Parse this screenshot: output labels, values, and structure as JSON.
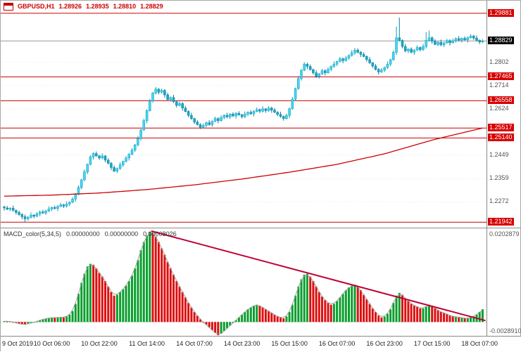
{
  "header": {
    "symbol_period": "GBPUSD,H1",
    "open": "1.28926",
    "high": "1.28935",
    "low": "1.28810",
    "close": "1.28829"
  },
  "macd_header": {
    "name": "MACD_color(5,34,5)",
    "value1": "0.00000000",
    "value2": "0.00000000",
    "value3": "0.00008026"
  },
  "colors": {
    "line_red": "#cc0000",
    "trend_red": "#c00034",
    "candle_up": "#45d6ef",
    "candle_up_border": "#0d9cbe",
    "candle_down": "#17a9c9",
    "candle_down_border": "#0b7f9c",
    "hist_green": "#0a9e2d",
    "hist_red": "#dd0f0f",
    "label_bg_red": "#d60000",
    "label_bg_black": "#000000",
    "bid_line_gray": "#9a9a9a",
    "header_text": "#cc0000"
  },
  "chart_data": [
    {
      "type": "candlestick",
      "title": "GBPUSD,H1",
      "ylim": [
        1.2176,
        1.3036
      ],
      "first_open": 1.2252,
      "closes": [
        1.2248,
        1.2243,
        1.2247,
        1.2239,
        1.2231,
        1.2223,
        1.2215,
        1.2207,
        1.2213,
        1.2221,
        1.2217,
        1.2226,
        1.2233,
        1.2229,
        1.2237,
        1.2244,
        1.225,
        1.2246,
        1.2254,
        1.226,
        1.2255,
        1.2263,
        1.227,
        1.2282,
        1.23,
        1.2326,
        1.2355,
        1.2385,
        1.2414,
        1.2442,
        1.2455,
        1.2446,
        1.2438,
        1.2446,
        1.243,
        1.2418,
        1.2402,
        1.2388,
        1.2398,
        1.2412,
        1.2425,
        1.2438,
        1.2452,
        1.2468,
        1.2488,
        1.2512,
        1.2545,
        1.258,
        1.2618,
        1.2655,
        1.2685,
        1.27,
        1.2688,
        1.2695,
        1.2678,
        1.266,
        1.2668,
        1.2652,
        1.2638,
        1.2645,
        1.2628,
        1.2615,
        1.26,
        1.2588,
        1.2575,
        1.2565,
        1.2555,
        1.2562,
        1.2572,
        1.2565,
        1.2578,
        1.2588,
        1.258,
        1.2592,
        1.26,
        1.2594,
        1.2605,
        1.2598,
        1.2608,
        1.2602,
        1.2595,
        1.2605,
        1.2612,
        1.2606,
        1.2615,
        1.2622,
        1.2616,
        1.2625,
        1.2618,
        1.2628,
        1.262,
        1.2612,
        1.2604,
        1.2596,
        1.2588,
        1.26,
        1.2625,
        1.2662,
        1.2702,
        1.274,
        1.2772,
        1.2795,
        1.2786,
        1.2774,
        1.2762,
        1.2748,
        1.2758,
        1.277,
        1.2762,
        1.2775,
        1.2786,
        1.2795,
        1.2805,
        1.2815,
        1.2808,
        1.2818,
        1.2828,
        1.2838,
        1.2848,
        1.284,
        1.2832,
        1.2824,
        1.2812,
        1.28,
        1.2788,
        1.2775,
        1.2765,
        1.2772,
        1.2782,
        1.2795,
        1.2812,
        1.284,
        1.2895,
        1.2885,
        1.2862,
        1.2845,
        1.2852,
        1.284,
        1.2848,
        1.2858,
        1.285,
        1.2862,
        1.2885,
        1.2895,
        1.2882,
        1.287,
        1.2878,
        1.2868,
        1.2876,
        1.2884,
        1.2876,
        1.2884,
        1.2892,
        1.2886,
        1.2893,
        1.2887,
        1.2895,
        1.2902,
        1.2894,
        1.2886,
        1.2879,
        1.28829
      ],
      "wick_cycle": [
        0.0005,
        0.0008,
        0.0004,
        0.001,
        0.0003,
        0.0007
      ],
      "wick_overrides": {
        "7": {
          "l": 1.2196
        },
        "51": {
          "h": 1.2708
        },
        "66": {
          "l": 1.2548
        },
        "118": {
          "h": 1.2856
        },
        "132": {
          "h": 1.2938
        },
        "133": {
          "h": 1.2972
        },
        "142": {
          "h": 1.2916
        },
        "143": {
          "h": 1.2922
        },
        "157": {
          "h": 1.2909
        }
      },
      "ma_points": [
        [
          0,
          1.2293
        ],
        [
          16,
          1.2297
        ],
        [
          32,
          1.2305
        ],
        [
          48,
          1.2318
        ],
        [
          64,
          1.2336
        ],
        [
          80,
          1.2358
        ],
        [
          96,
          1.2384
        ],
        [
          112,
          1.2414
        ],
        [
          128,
          1.2454
        ],
        [
          144,
          1.2506
        ],
        [
          152,
          1.2528
        ],
        [
          161,
          1.2552
        ]
      ],
      "hlines": [
        "1.29881",
        "1.27465",
        "1.26558",
        "1.25517",
        "1.25140",
        "1.21942"
      ],
      "price_line": "1.28829",
      "axis_labels_gray": [
        "1.2802",
        "1.2714",
        "1.2624",
        "1.2449",
        "1.2359",
        "1.2272"
      ]
    },
    {
      "type": "bar",
      "title": "MACD_color(5,34,5)",
      "ylim": [
        -0.002891,
        0.0202879
      ],
      "values": [
        0.0002,
        0.0001,
        0.0002,
        0.0,
        -0.0002,
        -0.0004,
        -0.0005,
        -0.0006,
        -0.0004,
        -0.0002,
        -0.0001,
        0.0001,
        0.0004,
        0.0006,
        0.0007,
        0.0009,
        0.001,
        0.0009,
        0.001,
        0.0011,
        0.001,
        0.0012,
        0.0016,
        0.0024,
        0.004,
        0.0062,
        0.0086,
        0.0106,
        0.0122,
        0.0128,
        0.0126,
        0.0118,
        0.0108,
        0.01,
        0.009,
        0.0078,
        0.0066,
        0.0058,
        0.006,
        0.0066,
        0.0072,
        0.008,
        0.009,
        0.0102,
        0.0118,
        0.0136,
        0.0158,
        0.0176,
        0.019,
        0.0198,
        0.0196,
        0.0188,
        0.0176,
        0.0162,
        0.0148,
        0.0132,
        0.0118,
        0.0104,
        0.009,
        0.0078,
        0.0066,
        0.0054,
        0.0042,
        0.0032,
        0.0022,
        0.0014,
        0.0006,
        0.0,
        -0.0006,
        -0.0012,
        -0.0018,
        -0.0024,
        -0.0029,
        -0.0026,
        -0.002,
        -0.0014,
        -0.0008,
        -0.0002,
        0.0004,
        0.001,
        0.0016,
        0.0022,
        0.0028,
        0.0032,
        0.0036,
        0.0038,
        0.0036,
        0.0032,
        0.0028,
        0.0024,
        0.002,
        0.0016,
        0.0012,
        0.001,
        0.0008,
        0.0012,
        0.0022,
        0.0038,
        0.0058,
        0.0078,
        0.0094,
        0.0104,
        0.0106,
        0.01,
        0.009,
        0.0078,
        0.0066,
        0.0056,
        0.0048,
        0.0042,
        0.0038,
        0.004,
        0.0046,
        0.0054,
        0.0062,
        0.007,
        0.0076,
        0.008,
        0.0082,
        0.0078,
        0.007,
        0.006,
        0.005,
        0.004,
        0.003,
        0.0022,
        0.0014,
        0.001,
        0.0012,
        0.0018,
        0.0028,
        0.0042,
        0.0058,
        0.0064,
        0.006,
        0.0052,
        0.0046,
        0.004,
        0.0036,
        0.0034,
        0.003,
        0.003,
        0.0034,
        0.0038,
        0.0036,
        0.003,
        0.0026,
        0.0022,
        0.002,
        0.0018,
        0.0014,
        0.0012,
        0.0012,
        0.001,
        0.001,
        0.0008,
        0.0008,
        0.001,
        0.0012,
        0.0016,
        0.0022,
        0.0028
      ],
      "trendline": [
        [
          49.5,
          0.02
        ],
        [
          162,
          0.0003
        ]
      ],
      "axis_labels": [
        "0.0202879",
        "-0.0028910"
      ]
    }
  ],
  "time_axis": {
    "ticks": [
      {
        "idx": 0,
        "label": "9 Oct 2019"
      },
      {
        "idx": 16,
        "label": "10 Oct 06:00"
      },
      {
        "idx": 32,
        "label": "10 Oct 22:00"
      },
      {
        "idx": 48,
        "label": "11 Oct 14:00"
      },
      {
        "idx": 64,
        "label": "14 Oct 07:00"
      },
      {
        "idx": 80,
        "label": "14 Oct 23:00"
      },
      {
        "idx": 96,
        "label": "15 Oct 15:00"
      },
      {
        "idx": 112,
        "label": "16 Oct 07:00"
      },
      {
        "idx": 128,
        "label": "16 Oct 23:00"
      },
      {
        "idx": 144,
        "label": "17 Oct 15:00"
      },
      {
        "idx": 160,
        "label": "18 Oct 07:00"
      }
    ]
  }
}
